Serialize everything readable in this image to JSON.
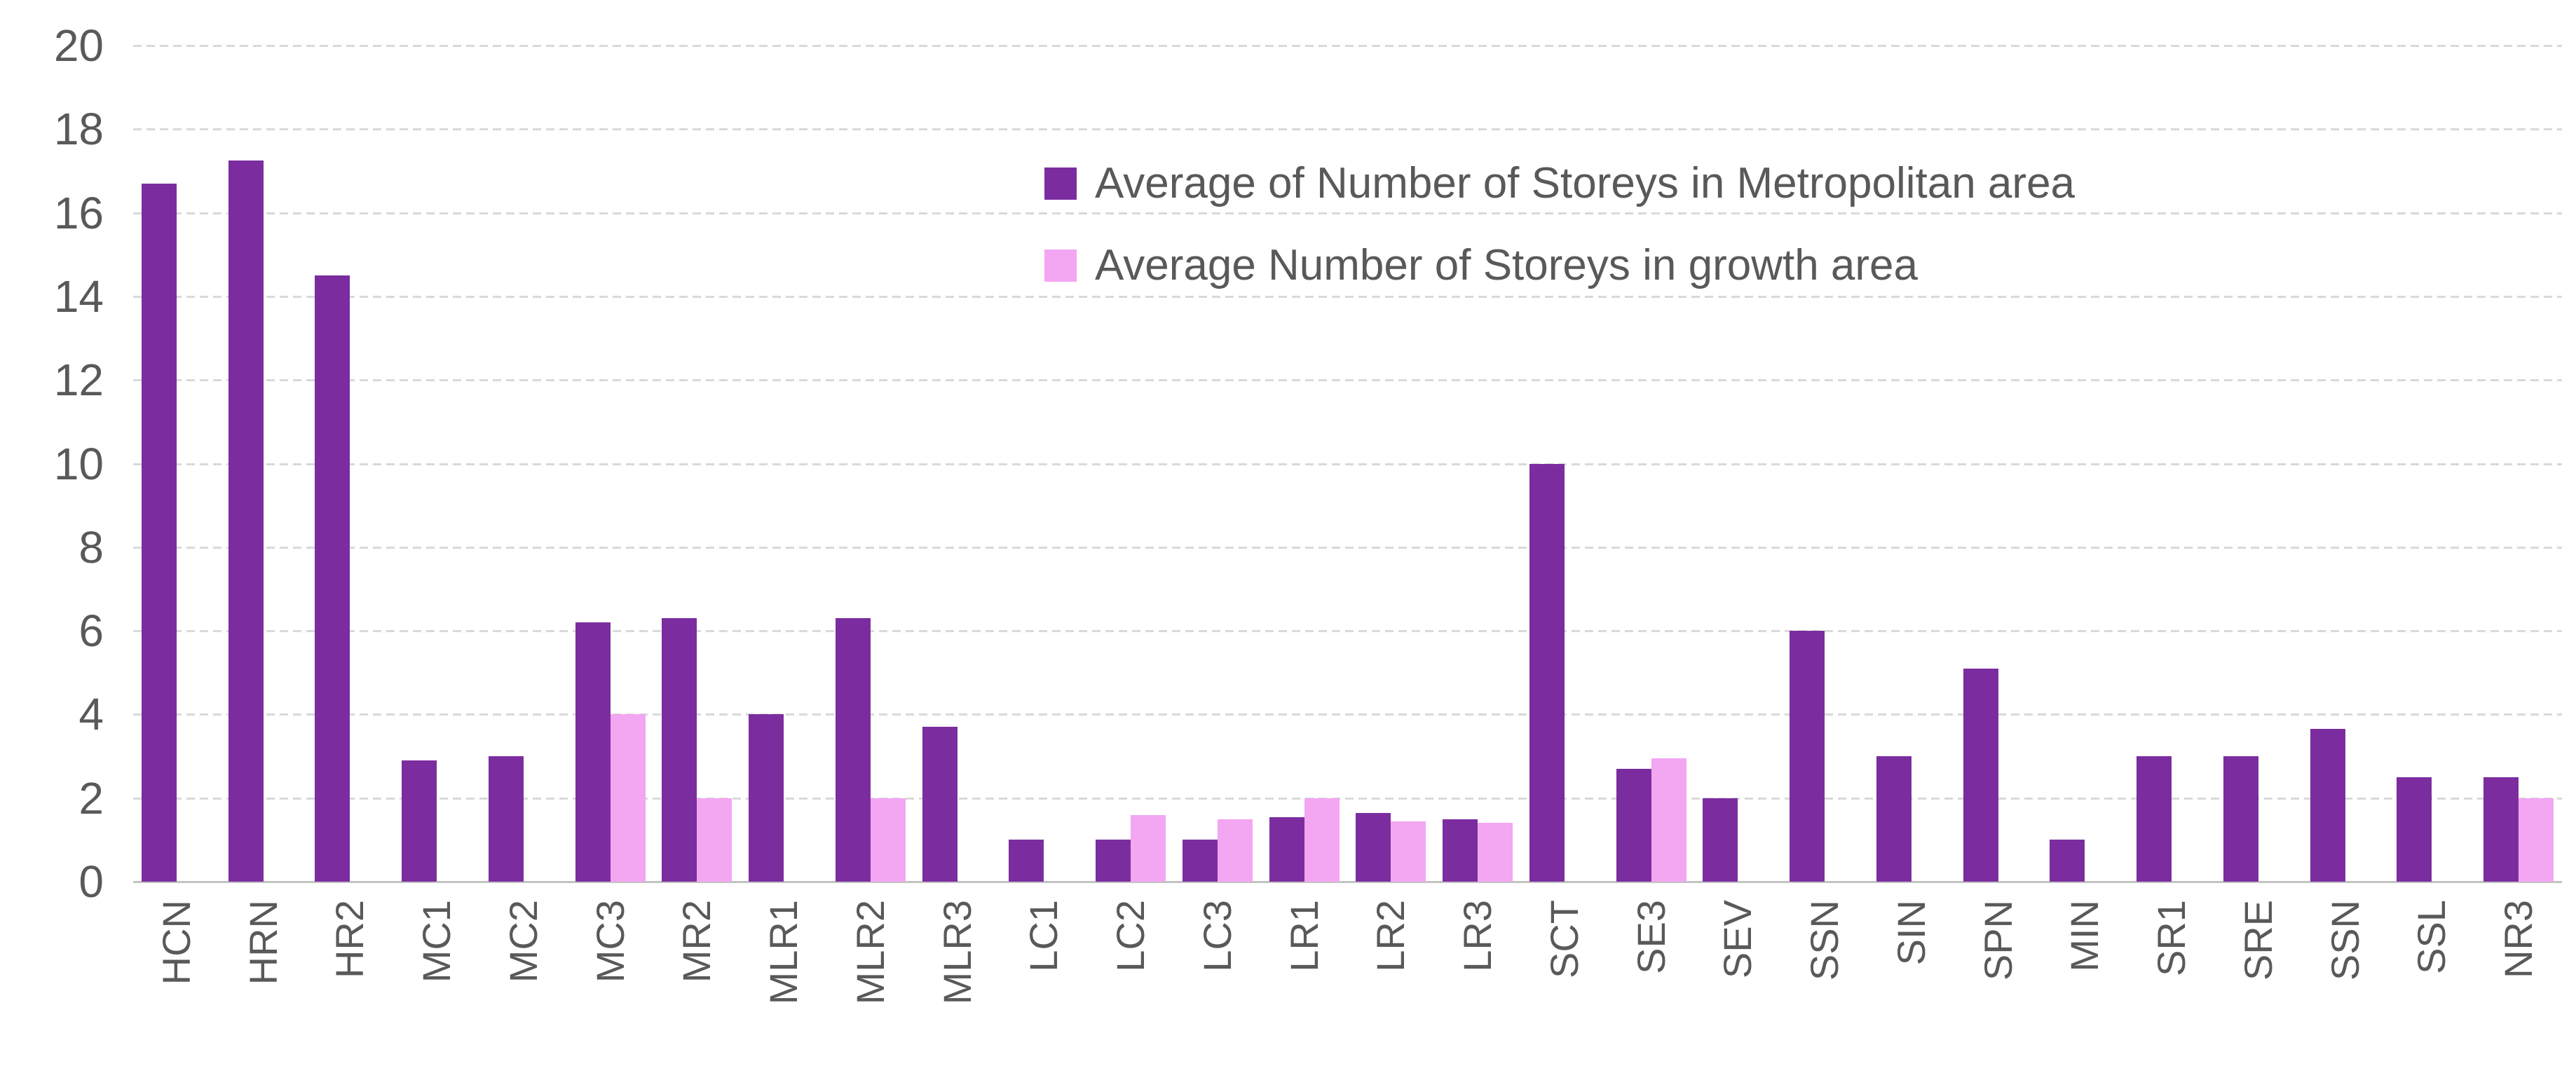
{
  "chart_data": {
    "type": "bar",
    "title": "",
    "xlabel": "",
    "ylabel": "",
    "ylim": [
      0,
      20
    ],
    "ytick_step": 2,
    "ytick_labels": [
      "0",
      "2",
      "4",
      "6",
      "8",
      "10",
      "12",
      "14",
      "16",
      "18",
      "20"
    ],
    "grid": "horizontal dashed",
    "legend_position": "top-right inside plot",
    "categories": [
      "HCN",
      "HRN",
      "HR2",
      "MC1",
      "MC2",
      "MC3",
      "MR2",
      "MLR1",
      "MLR2",
      "MLR3",
      "LC1",
      "LC2",
      "LC3",
      "LR1",
      "LR2",
      "LR3",
      "SCT",
      "SE3",
      "SEV",
      "SSN",
      "SIN",
      "SPN",
      "MIN",
      "SR1",
      "SRE",
      "SSN",
      "SSL",
      "NR3"
    ],
    "series": [
      {
        "name": "Average of Number of Storeys in Metropolitan area",
        "color": "#7b2da0",
        "values": [
          16.7,
          17.25,
          14.5,
          2.9,
          3.0,
          6.2,
          6.3,
          4.0,
          6.3,
          3.7,
          1.0,
          1.0,
          1.0,
          1.55,
          1.65,
          1.5,
          10.0,
          2.7,
          2.0,
          6.0,
          3.0,
          5.1,
          1.0,
          3.0,
          3.0,
          3.65,
          2.5,
          2.5
        ]
      },
      {
        "name": "Average Number of Storeys in growth area",
        "color": "#f3a6f1",
        "values": [
          null,
          null,
          null,
          null,
          null,
          4.0,
          2.0,
          null,
          2.0,
          null,
          null,
          1.6,
          1.5,
          2.0,
          1.45,
          1.4,
          null,
          2.95,
          null,
          null,
          null,
          null,
          null,
          null,
          null,
          null,
          null,
          2.0
        ]
      }
    ]
  },
  "colors": {
    "gridline": "#d9d9d9",
    "axis_line": "#c3c3c3",
    "text": "#595959",
    "background": "#ffffff"
  }
}
